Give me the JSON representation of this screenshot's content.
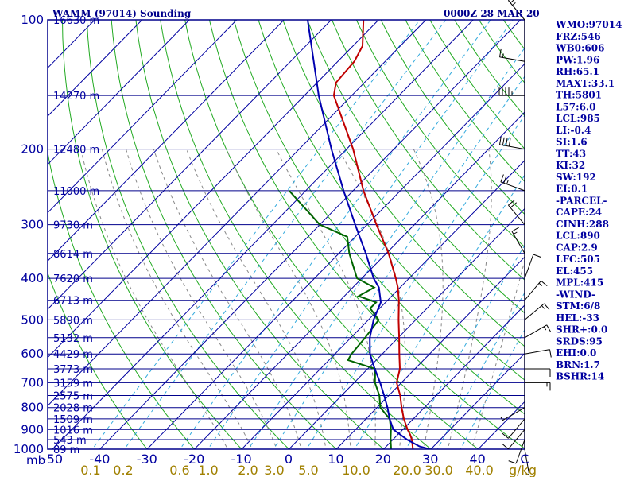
{
  "title": "WAMM (97014) Sounding",
  "datetime": "0000Z 28 MAR 20",
  "pressure_unit": "mb",
  "mixing_unit": "g/kg",
  "colors": {
    "frame": "#00008b",
    "isobar": "#00008b",
    "isotherm": "#0000a0",
    "dry_adiabat": "#22aa22",
    "moist_adiabat": "#888888",
    "mixing_ratio": "#33aadd",
    "temperature": "#c00000",
    "dewpoint": "#006400",
    "parcel": "#0000b0",
    "wind": "#000000"
  },
  "indices": [
    "WMO:97014",
    "FRZ:546",
    "WB0:606",
    "PW:1.96",
    "RH:65.1",
    "MAXT:33.1",
    "TH:5801",
    "L57:6.0",
    "LCL:985",
    "LI:-0.4",
    "SI:1.6",
    "TT:43",
    "KI:32",
    "SW:192",
    "EI:0.1",
    "-PARCEL-",
    "CAPE:24",
    "CINH:288",
    "LCL:890",
    "CAP:2.9",
    "LFC:505",
    "EL:455",
    "MPL:415",
    "-WIND-",
    "STM:6/8",
    "HEL:-33",
    "SHR+:0.0",
    "SRDS:95",
    "EHI:0.0",
    "BRN:1.7",
    "BSHR:14"
  ],
  "chart_data": {
    "type": "line",
    "subtype": "skew-T log-P sounding",
    "title": "WAMM (97014) Sounding",
    "xlabel": "",
    "ylabel": "mb",
    "ylim": [
      1000,
      100
    ],
    "y_scale": "log",
    "pressure_ticks": [
      100,
      200,
      300,
      400,
      500,
      600,
      700,
      800,
      900,
      1000
    ],
    "temperature_ticks": [
      "-50",
      "-40",
      "-30",
      "-20",
      "-10",
      "0",
      "10",
      "20",
      "30",
      "40",
      "C"
    ],
    "mixing_ratio_ticks": [
      "0.1",
      "0.2",
      "0.6",
      "1.0",
      "2.0",
      "3.0",
      "5.0",
      "10.0",
      "20.0",
      "30.0",
      "40.0",
      "g/kg"
    ],
    "height_labels": [
      {
        "p": 100,
        "label": "16630 m"
      },
      {
        "p": 150,
        "label": "14270 m"
      },
      {
        "p": 200,
        "label": "12480 m"
      },
      {
        "p": 250,
        "label": "11000 m"
      },
      {
        "p": 300,
        "label": "9730 m"
      },
      {
        "p": 350,
        "label": "8614 m"
      },
      {
        "p": 400,
        "label": "7620 m"
      },
      {
        "p": 450,
        "label": "6713 m"
      },
      {
        "p": 500,
        "label": "5890 m"
      },
      {
        "p": 550,
        "label": "5132 m"
      },
      {
        "p": 600,
        "label": "4429 m"
      },
      {
        "p": 650,
        "label": "3773 m"
      },
      {
        "p": 700,
        "label": "3159 m"
      },
      {
        "p": 750,
        "label": "2575 m"
      },
      {
        "p": 800,
        "label": "2028 m"
      },
      {
        "p": 850,
        "label": "1509 m"
      },
      {
        "p": 900,
        "label": "1016 m"
      },
      {
        "p": 950,
        "label": "543 m"
      },
      {
        "p": 1000,
        "label": "89 m"
      }
    ],
    "series": [
      {
        "name": "temperature",
        "points": [
          [
            1000,
            26.2
          ],
          [
            950,
            24.0
          ],
          [
            925,
            22.6
          ],
          [
            900,
            21.0
          ],
          [
            850,
            18.0
          ],
          [
            800,
            15.2
          ],
          [
            750,
            12.4
          ],
          [
            700,
            9.0
          ],
          [
            650,
            6.8
          ],
          [
            600,
            3.6
          ],
          [
            550,
            0.2
          ],
          [
            500,
            -3.6
          ],
          [
            450,
            -7.6
          ],
          [
            420,
            -10.5
          ],
          [
            400,
            -12.8
          ],
          [
            350,
            -19.5
          ],
          [
            300,
            -28.0
          ],
          [
            250,
            -37.8
          ],
          [
            200,
            -48.6
          ],
          [
            150,
            -63.8
          ],
          [
            140,
            -66.0
          ],
          [
            125,
            -66.5
          ],
          [
            115,
            -68.0
          ],
          [
            100,
            -73.2
          ]
        ]
      },
      {
        "name": "dewpoint",
        "points": [
          [
            1000,
            21.6
          ],
          [
            950,
            19.5
          ],
          [
            900,
            17.5
          ],
          [
            850,
            15.0
          ],
          [
            800,
            10.7
          ],
          [
            750,
            8.0
          ],
          [
            700,
            4.4
          ],
          [
            650,
            1.6
          ],
          [
            620,
            -6.0
          ],
          [
            600,
            -6.5
          ],
          [
            550,
            -7.0
          ],
          [
            500,
            -7.8
          ],
          [
            470,
            -12.0
          ],
          [
            455,
            -12.0
          ],
          [
            440,
            -17.0
          ],
          [
            420,
            -15.5
          ],
          [
            400,
            -21.0
          ],
          [
            350,
            -27.8
          ],
          [
            320,
            -31.7
          ],
          [
            300,
            -40.0
          ],
          [
            250,
            -53.5
          ]
        ]
      },
      {
        "name": "parcel",
        "points": [
          [
            1000,
            29.7
          ],
          [
            985,
            27.0
          ],
          [
            950,
            23.0
          ],
          [
            900,
            18.0
          ],
          [
            850,
            15.0
          ],
          [
            800,
            12.2
          ],
          [
            750,
            9.0
          ],
          [
            700,
            5.5
          ],
          [
            650,
            1.5
          ],
          [
            600,
            -2.6
          ],
          [
            550,
            -6.0
          ],
          [
            500,
            -8.9
          ],
          [
            455,
            -11.0
          ],
          [
            420,
            -14.5
          ],
          [
            400,
            -17.5
          ],
          [
            350,
            -24.3
          ],
          [
            300,
            -32.5
          ],
          [
            250,
            -42.0
          ],
          [
            200,
            -53.2
          ],
          [
            150,
            -67.0
          ],
          [
            100,
            -85.0
          ]
        ]
      }
    ],
    "wind_barbs": [
      {
        "p": 1000,
        "dir": 170,
        "spd": 5
      },
      {
        "p": 950,
        "dir": 200,
        "spd": 10
      },
      {
        "p": 900,
        "dir": 220,
        "spd": 10
      },
      {
        "p": 850,
        "dir": 220,
        "spd": 10
      },
      {
        "p": 800,
        "dir": 240,
        "spd": 5
      },
      {
        "p": 750,
        "dir": 180,
        "spd": 5
      },
      {
        "p": 700,
        "dir": 90,
        "spd": 15
      },
      {
        "p": 650,
        "dir": 90,
        "spd": 10
      },
      {
        "p": 600,
        "dir": 80,
        "spd": 10
      },
      {
        "p": 550,
        "dir": 60,
        "spd": 15
      },
      {
        "p": 500,
        "dir": 50,
        "spd": 15
      },
      {
        "p": 450,
        "dir": 40,
        "spd": 15
      },
      {
        "p": 400,
        "dir": 20,
        "spd": 10
      },
      {
        "p": 350,
        "dir": 330,
        "spd": 15
      },
      {
        "p": 300,
        "dir": 320,
        "spd": 20
      },
      {
        "p": 250,
        "dir": 290,
        "spd": 25
      },
      {
        "p": 200,
        "dir": 280,
        "spd": 40
      },
      {
        "p": 150,
        "dir": 270,
        "spd": 45
      },
      {
        "p": 125,
        "dir": 280,
        "spd": 15
      },
      {
        "p": 100,
        "dir": 320,
        "spd": 25
      }
    ]
  }
}
